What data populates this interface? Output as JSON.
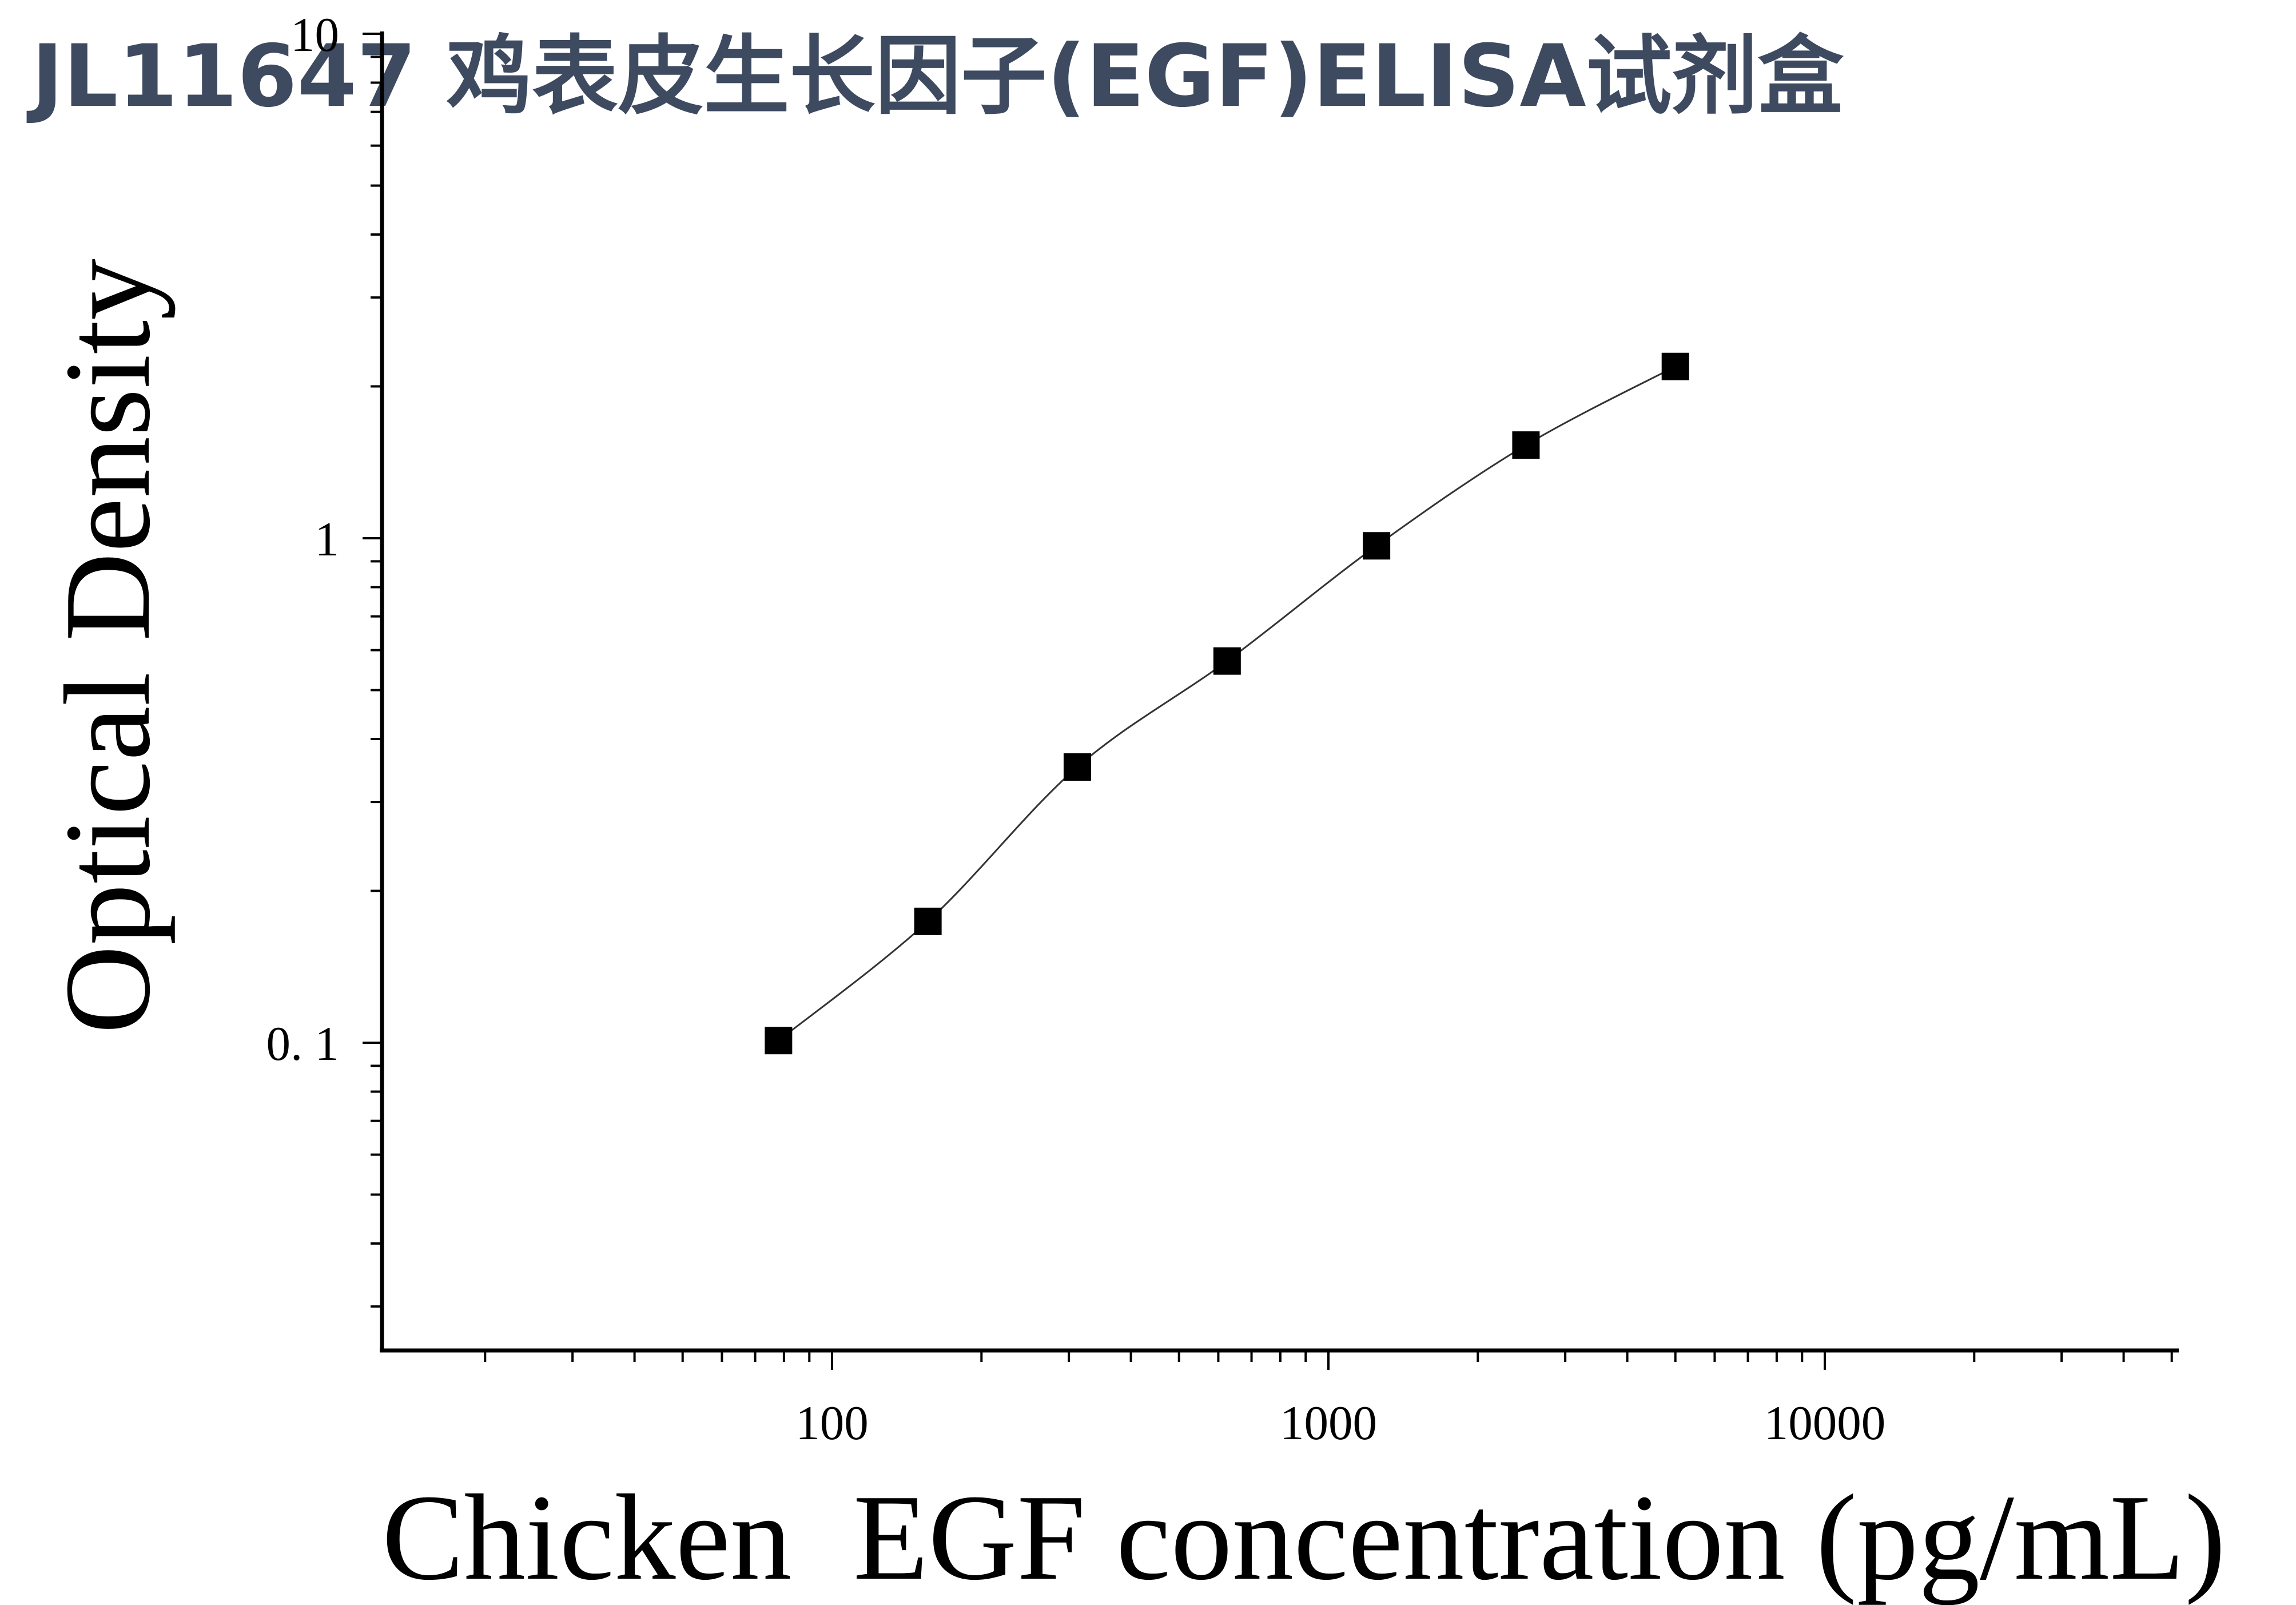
{
  "header": {
    "title": "JL11647 鸡表皮生长因子(EGF)ELISA试剂盒",
    "title_color": "#3d4a60"
  },
  "chart_data": {
    "type": "scatter",
    "title": "JL11647 鸡表皮生长因子(EGF)ELISA试剂盒",
    "xlabel": "Chicken  EGF concentration (pg/mL)",
    "ylabel": "Optical Density",
    "x_scale": "log",
    "y_scale": "log",
    "xlim": [
      12,
      50000
    ],
    "ylim": [
      0.03,
      10
    ],
    "x_ticks": [
      {
        "value": 100,
        "label": "100"
      },
      {
        "value": 1000,
        "label": "1000"
      },
      {
        "value": 10000,
        "label": "10000"
      }
    ],
    "y_ticks": [
      {
        "value": 0.1,
        "label": "0. 1"
      },
      {
        "value": 1,
        "label": "1"
      },
      {
        "value": 10,
        "label": "10"
      }
    ],
    "grid": false,
    "legend": "none",
    "marker": "square",
    "marker_color": "#000000",
    "fit_line": "smooth curve",
    "series": [
      {
        "x": [
          78,
          156,
          312,
          625,
          1250,
          2500,
          5000
        ],
        "y": [
          0.101,
          0.174,
          0.352,
          0.571,
          0.966,
          1.53,
          2.19
        ]
      }
    ]
  }
}
